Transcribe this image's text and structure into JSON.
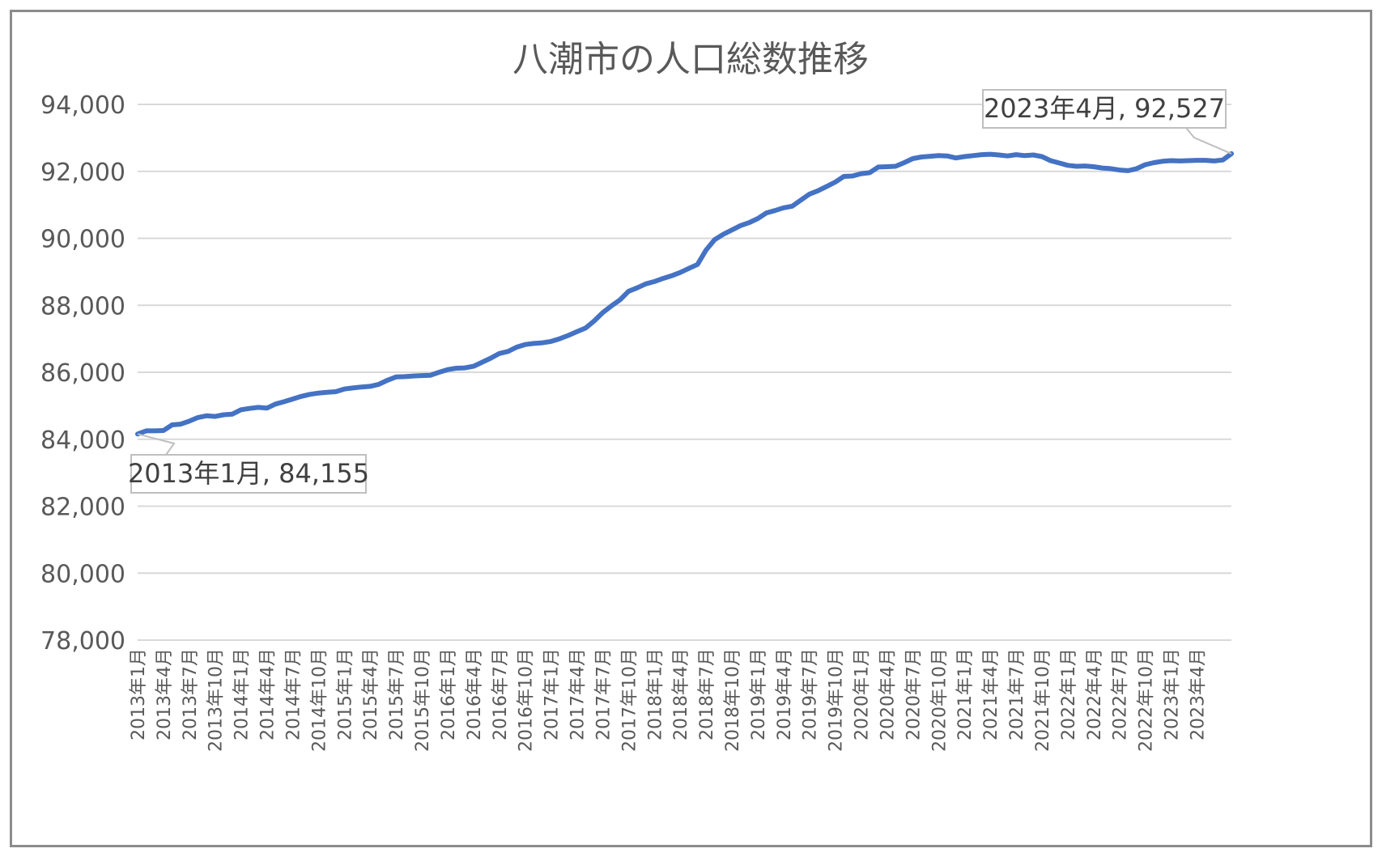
{
  "chart_data": {
    "type": "line",
    "title": "八潮市の人口総数推移",
    "xlabel": "",
    "ylabel": "",
    "ylim": [
      78000,
      94000
    ],
    "yticks": [
      "94,000",
      "92,000",
      "90,000",
      "88,000",
      "86,000",
      "84,000",
      "82,000",
      "80,000",
      "78,000"
    ],
    "ytick_values": [
      94000,
      92000,
      90000,
      88000,
      86000,
      84000,
      82000,
      80000,
      78000
    ],
    "x_tick_labels": [
      "2013年1月",
      "2013年4月",
      "2013年7月",
      "2013年10月",
      "2014年1月",
      "2014年4月",
      "2014年7月",
      "2014年10月",
      "2015年1月",
      "2015年4月",
      "2015年7月",
      "2015年10月",
      "2016年1月",
      "2016年4月",
      "2016年7月",
      "2016年10月",
      "2017年1月",
      "2017年4月",
      "2017年7月",
      "2017年10月",
      "2018年1月",
      "2018年4月",
      "2018年7月",
      "2018年10月",
      "2019年1月",
      "2019年4月",
      "2019年7月",
      "2019年10月",
      "2020年1月",
      "2020年4月",
      "2020年7月",
      "2020年10月",
      "2021年1月",
      "2021年4月",
      "2021年7月",
      "2021年10月",
      "2022年1月",
      "2022年4月",
      "2022年7月",
      "2022年10月",
      "2023年1月",
      "2023年4月"
    ],
    "grid": true,
    "legend": "none",
    "series_color": "#4472c4",
    "x_start": "2013年1月",
    "x_end": "2023年4月",
    "values": [
      84155,
      84250,
      84250,
      84260,
      84430,
      84450,
      84540,
      84650,
      84700,
      84680,
      84730,
      84750,
      84880,
      84920,
      84950,
      84930,
      85050,
      85120,
      85200,
      85280,
      85340,
      85380,
      85400,
      85420,
      85500,
      85530,
      85560,
      85580,
      85640,
      85760,
      85860,
      85870,
      85890,
      85900,
      85910,
      86000,
      86080,
      86120,
      86130,
      86180,
      86300,
      86420,
      86560,
      86620,
      86750,
      86830,
      86860,
      86880,
      86920,
      87000,
      87100,
      87210,
      87320,
      87530,
      87780,
      87980,
      88160,
      88420,
      88520,
      88640,
      88710,
      88800,
      88880,
      88980,
      89100,
      89220,
      89650,
      89960,
      90120,
      90250,
      90380,
      90470,
      90590,
      90760,
      90830,
      90910,
      90960,
      91140,
      91320,
      91420,
      91550,
      91680,
      91850,
      91860,
      91930,
      91960,
      92130,
      92140,
      92150,
      92260,
      92380,
      92430,
      92450,
      92470,
      92460,
      92400,
      92440,
      92470,
      92500,
      92510,
      92490,
      92460,
      92500,
      92470,
      92490,
      92440,
      92320,
      92250,
      92180,
      92150,
      92160,
      92140,
      92100,
      92080,
      92040,
      92020,
      92080,
      92200,
      92260,
      92300,
      92320,
      92310,
      92320,
      92330,
      92330,
      92310,
      92340,
      92527
    ],
    "annotations": [
      {
        "label": "2013年1月, 84,155",
        "x": "2013年1月",
        "value": 84155
      },
      {
        "label": "2023年4月, 92,527",
        "x": "2023年4月",
        "value": 92527
      }
    ]
  }
}
